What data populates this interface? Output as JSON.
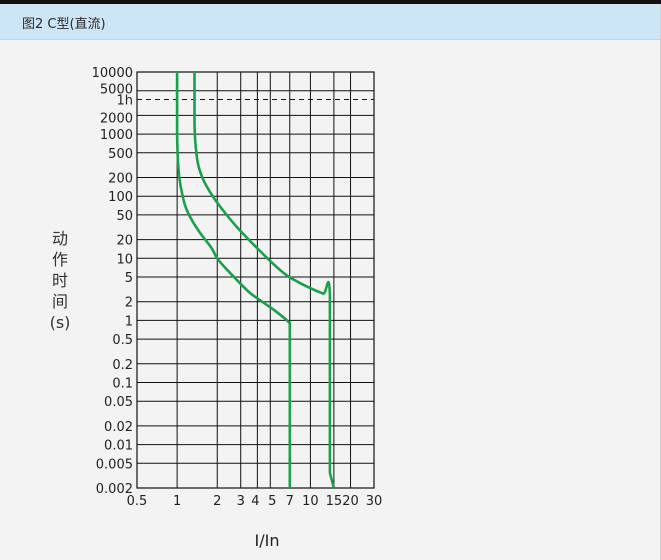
{
  "header": {
    "title": "图2  C型(直流)"
  },
  "chart_data": {
    "type": "line",
    "title": "图2  C型(直流)",
    "xlabel": "I/In",
    "ylabel_chars": [
      "动",
      "作",
      "时",
      "间",
      "(s)"
    ],
    "x_scale": "log",
    "y_scale": "log",
    "xlim": [
      0.5,
      30
    ],
    "ylim": [
      0.002,
      10000
    ],
    "grid": true,
    "x_grid": [
      0.5,
      1,
      2,
      3,
      4,
      5,
      7,
      10,
      15,
      20,
      30
    ],
    "x_ticks": [
      {
        "label": "0.5",
        "value": 0.5
      },
      {
        "label": "1",
        "value": 1
      },
      {
        "label": "2",
        "value": 2
      },
      {
        "label": "3",
        "value": 3
      },
      {
        "label": "4",
        "value": 4
      },
      {
        "label": "5",
        "value": 5
      },
      {
        "label": "7",
        "value": 7
      },
      {
        "label": "10",
        "value": 10
      },
      {
        "label": "15",
        "value": 15
      },
      {
        "label": "20",
        "value": 20
      },
      {
        "label": "30",
        "value": 30
      }
    ],
    "y_ticks": [
      {
        "label": "10000",
        "value": 10000
      },
      {
        "label": "5000",
        "value": 5000
      },
      {
        "label": "2000",
        "value": 2000
      },
      {
        "label": "1000",
        "value": 1000
      },
      {
        "label": "500",
        "value": 500
      },
      {
        "label": "200",
        "value": 200
      },
      {
        "label": "100",
        "value": 100
      },
      {
        "label": "50",
        "value": 50
      },
      {
        "label": "20",
        "value": 20
      },
      {
        "label": "10",
        "value": 10
      },
      {
        "label": "5",
        "value": 5
      },
      {
        "label": "2",
        "value": 2
      },
      {
        "label": "1",
        "value": 1
      },
      {
        "label": "0.5",
        "value": 0.5
      },
      {
        "label": "0.2",
        "value": 0.2
      },
      {
        "label": "0.1",
        "value": 0.1
      },
      {
        "label": "0.05",
        "value": 0.05
      },
      {
        "label": "0.02",
        "value": 0.02
      },
      {
        "label": "0.01",
        "value": 0.01
      },
      {
        "label": "0.005",
        "value": 0.005
      },
      {
        "label": "0.002",
        "value": 0.002
      }
    ],
    "reference_line": {
      "label": "1h",
      "value": 3600,
      "style": "dashed"
    },
    "curve_color": "#1aa04a",
    "series": [
      {
        "points": [
          [
            1.0,
            10000
          ],
          [
            1.0,
            1000
          ],
          [
            1.02,
            300
          ],
          [
            1.06,
            150
          ],
          [
            1.15,
            70
          ],
          [
            1.3,
            40
          ],
          [
            1.5,
            25
          ],
          [
            1.8,
            15
          ],
          [
            2.0,
            10
          ],
          [
            2.3,
            7
          ],
          [
            2.8,
            4.5
          ],
          [
            3.5,
            2.8
          ],
          [
            4.5,
            1.9
          ],
          [
            5.5,
            1.4
          ],
          [
            6.5,
            1.05
          ],
          [
            7.0,
            0.9
          ],
          [
            7.0,
            0.002
          ]
        ]
      },
      {
        "points": [
          [
            1.35,
            10000
          ],
          [
            1.35,
            1500
          ],
          [
            1.38,
            600
          ],
          [
            1.45,
            300
          ],
          [
            1.6,
            170
          ],
          [
            1.85,
            100
          ],
          [
            2.2,
            60
          ],
          [
            2.7,
            35
          ],
          [
            3.3,
            22
          ],
          [
            4.2,
            13
          ],
          [
            5.3,
            8
          ],
          [
            6.5,
            5.5
          ],
          [
            8.0,
            4.2
          ],
          [
            10.0,
            3.3
          ],
          [
            12.5,
            2.7
          ],
          [
            14.0,
            2.5
          ],
          [
            14.0,
            0.0035
          ],
          [
            15.0,
            0.002
          ]
        ]
      }
    ]
  }
}
